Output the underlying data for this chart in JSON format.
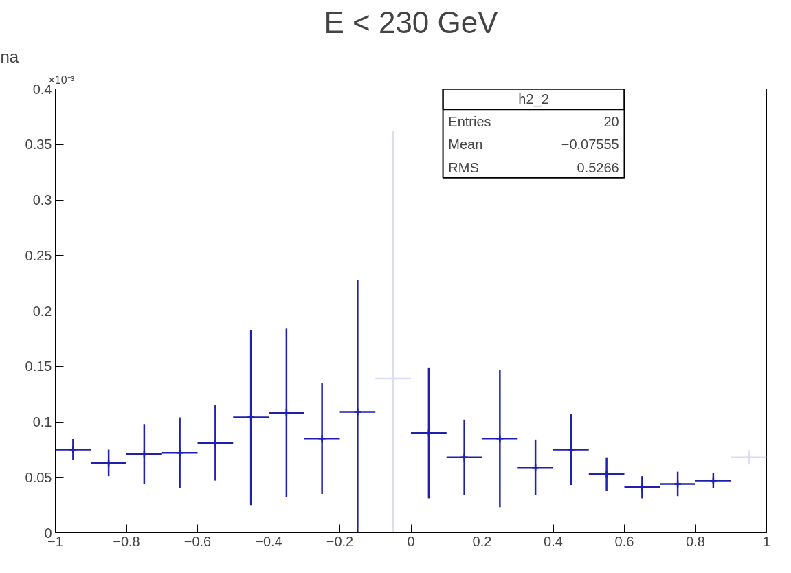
{
  "chart_data": {
    "type": "scatter",
    "title": "E < 230 GeV",
    "marker": "cross",
    "grid": false,
    "x": [
      -0.95,
      -0.85,
      -0.75,
      -0.65,
      -0.55,
      -0.45,
      -0.35,
      -0.25,
      -0.15,
      -0.05,
      0.05,
      0.15,
      0.25,
      0.35,
      0.45,
      0.55,
      0.65,
      0.75,
      0.85,
      0.95
    ],
    "values": [
      0.075,
      0.063,
      0.071,
      0.072,
      0.081,
      0.104,
      0.108,
      0.085,
      0.109,
      0.139,
      0.09,
      0.068,
      0.085,
      0.059,
      0.075,
      0.053,
      0.041,
      0.044,
      0.047,
      0.068
    ],
    "errors": [
      0.0095,
      0.012,
      0.027,
      0.032,
      0.034,
      0.079,
      0.076,
      0.05,
      [
        0,
        0.228
      ],
      [
        0,
        0.362
      ],
      0.059,
      0.034,
      0.062,
      0.025,
      0.032,
      0.015,
      0.01,
      0.011,
      0.007,
      0.0065
    ],
    "xerrors": [
      0.05,
      0.05,
      0.05,
      0.05,
      0.05,
      0.05,
      0.05,
      0.05,
      0.05,
      0.05,
      0.05,
      0.05,
      0.05,
      0.05,
      0.05,
      0.05,
      0.05,
      0.05,
      0.05,
      0.05
    ],
    "colors": [
      "#2020b0",
      "#2020b0",
      "#2020b0",
      "#2020b0",
      "#2020b0",
      "#2020b0",
      "#2020b0",
      "#2020b0",
      "#2020b0",
      "#dcdcf2",
      "#2020b0",
      "#2020b0",
      "#2020b0",
      "#2020b0",
      "#2020b0",
      "#2020b0",
      "#2020b0",
      "#2020b0",
      "#2020b0",
      "#dcdcf2"
    ],
    "xlim": [
      -1,
      1
    ],
    "xticks": [
      -1,
      -0.8,
      -0.6,
      -0.4,
      -0.2,
      0,
      0.2,
      0.4,
      0.6,
      0.8,
      1
    ],
    "ylim": [
      0,
      0.4
    ],
    "yticks": [
      0,
      0.05,
      0.1,
      0.15,
      0.2,
      0.25,
      0.3,
      0.35,
      0.4
    ],
    "annotations": [
      "×10⁻³",
      "h2_2",
      "Entries",
      "20",
      "Mean",
      "−0.07555",
      "RMS",
      "0.5266",
      "na"
    ]
  }
}
